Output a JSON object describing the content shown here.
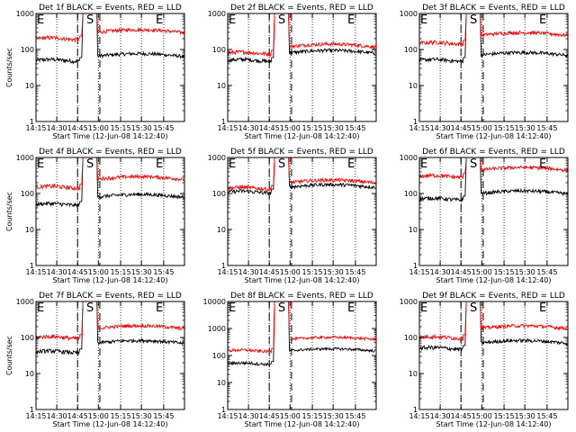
{
  "chart_data": [
    {
      "type": "line",
      "title": "Det 1f BLACK = Events, RED = LLD",
      "xlabel": "Start Time (12-Jun-08 14:12:40)",
      "ylabel": "Counts/sec",
      "ylim": [
        1,
        1000
      ],
      "y_scale": "log",
      "xlim": [
        0,
        100
      ],
      "x_ticks": [
        "14:15",
        "14:30",
        "14:45",
        "15:00",
        "15:15",
        "15:30",
        "15:45"
      ],
      "y_ticks": [
        "1",
        "10",
        "100",
        "1000"
      ],
      "markers": {
        "E": "E",
        "S": "S"
      },
      "series": [
        {
          "name": "Events",
          "color": "#000000",
          "pre": 50,
          "post": 65
        },
        {
          "name": "LLD",
          "color": "#ff0000",
          "pre": 200,
          "post": 300
        }
      ]
    },
    {
      "type": "line",
      "title": "Det 2f BLACK = Events, RED = LLD",
      "xlabel": "Start Time (12-Jun-08 14:12:40)",
      "ylabel": "",
      "ylim": [
        1,
        1000
      ],
      "y_scale": "log",
      "xlim": [
        0,
        100
      ],
      "x_ticks": [
        "14:15",
        "14:30",
        "14:45",
        "15:00",
        "15:15",
        "15:30",
        "15:45"
      ],
      "y_ticks": [
        "1",
        "10",
        "100",
        "1000"
      ],
      "markers": {
        "E": "E",
        "S": "S"
      },
      "series": [
        {
          "name": "Events",
          "color": "#000000",
          "pre": 50,
          "post": 80
        },
        {
          "name": "LLD",
          "color": "#ff0000",
          "pre": 80,
          "post": 120
        }
      ]
    },
    {
      "type": "line",
      "title": "Det 3f BLACK = Events, RED = LLD",
      "xlabel": "Start Time (12-Jun-08 14:12:40)",
      "ylabel": "",
      "ylim": [
        1,
        1000
      ],
      "y_scale": "log",
      "xlim": [
        0,
        100
      ],
      "x_ticks": [
        "14:15",
        "14:30",
        "14:45",
        "15:00",
        "15:15",
        "15:30",
        "15:45"
      ],
      "y_ticks": [
        "1",
        "10",
        "100",
        "1000"
      ],
      "markers": {
        "E": "E",
        "S": "S"
      },
      "series": [
        {
          "name": "Events",
          "color": "#000000",
          "pre": 50,
          "post": 70
        },
        {
          "name": "LLD",
          "color": "#ff0000",
          "pre": 150,
          "post": 250
        }
      ]
    },
    {
      "type": "line",
      "title": "Det 4f BLACK = Events, RED = LLD",
      "xlabel": "Start Time (12-Jun-08 14:12:40)",
      "ylabel": "Counts/sec",
      "ylim": [
        1,
        1000
      ],
      "y_scale": "log",
      "xlim": [
        0,
        100
      ],
      "x_ticks": [
        "14:15",
        "14:30",
        "14:45",
        "15:00",
        "15:15",
        "15:30",
        "15:45"
      ],
      "y_ticks": [
        "1",
        "10",
        "100",
        "1000"
      ],
      "markers": {
        "E": "E",
        "S": "S"
      },
      "series": [
        {
          "name": "Events",
          "color": "#000000",
          "pre": 50,
          "post": 80
        },
        {
          "name": "LLD",
          "color": "#ff0000",
          "pre": 150,
          "post": 250
        }
      ]
    },
    {
      "type": "line",
      "title": "Det 5f BLACK = Events, RED = LLD",
      "xlabel": "Start Time (12-Jun-08 14:12:40)",
      "ylabel": "",
      "ylim": [
        1,
        1000
      ],
      "y_scale": "log",
      "xlim": [
        0,
        100
      ],
      "x_ticks": [
        "14:15",
        "14:30",
        "14:45",
        "15:00",
        "15:15",
        "15:30",
        "15:45"
      ],
      "y_ticks": [
        "1",
        "10",
        "100",
        "1000"
      ],
      "markers": {
        "E": "E",
        "S": "S"
      },
      "series": [
        {
          "name": "Events",
          "color": "#000000",
          "pre": 110,
          "post": 150
        },
        {
          "name": "LLD",
          "color": "#ff0000",
          "pre": 140,
          "post": 200
        }
      ]
    },
    {
      "type": "line",
      "title": "Det 6f BLACK = Events, RED = LLD",
      "xlabel": "Start Time (12-Jun-08 14:12:40)",
      "ylabel": "",
      "ylim": [
        1,
        1000
      ],
      "y_scale": "log",
      "xlim": [
        0,
        100
      ],
      "x_ticks": [
        "14:15",
        "14:30",
        "14:45",
        "15:00",
        "15:15",
        "15:30",
        "15:45"
      ],
      "y_ticks": [
        "1",
        "10",
        "100",
        "1000"
      ],
      "markers": {
        "E": "E",
        "S": "S"
      },
      "series": [
        {
          "name": "Events",
          "color": "#000000",
          "pre": 70,
          "post": 100
        },
        {
          "name": "LLD",
          "color": "#ff0000",
          "pre": 300,
          "post": 450
        }
      ]
    },
    {
      "type": "line",
      "title": "Det 7f BLACK = Events, RED = LLD",
      "xlabel": "Start Time (12-Jun-08 14:12:40)",
      "ylabel": "Counts/sec",
      "ylim": [
        1,
        1000
      ],
      "y_scale": "log",
      "xlim": [
        0,
        100
      ],
      "x_ticks": [
        "14:15",
        "14:30",
        "14:45",
        "15:00",
        "15:15",
        "15:30",
        "15:45"
      ],
      "y_ticks": [
        "1",
        "10",
        "100",
        "1000"
      ],
      "markers": {
        "E": "E",
        "S": "S"
      },
      "series": [
        {
          "name": "Events",
          "color": "#000000",
          "pre": 40,
          "post": 70
        },
        {
          "name": "LLD",
          "color": "#ff0000",
          "pre": 100,
          "post": 180
        }
      ]
    },
    {
      "type": "line",
      "title": "Det 8f BLACK = Events, RED = LLD",
      "xlabel": "Start Time (12-Jun-08 14:12:40)",
      "ylabel": "",
      "ylim": [
        1,
        10000
      ],
      "y_scale": "log",
      "xlim": [
        0,
        100
      ],
      "x_ticks": [
        "14:15",
        "14:30",
        "14:45",
        "15:00",
        "15:15",
        "15:30",
        "15:45"
      ],
      "y_ticks": [
        "1",
        "10",
        "100",
        "1000",
        "10000"
      ],
      "markers": {
        "E": "E",
        "S": "S"
      },
      "series": [
        {
          "name": "Events",
          "color": "#000000",
          "pre": 50,
          "post": 150
        },
        {
          "name": "LLD",
          "color": "#ff0000",
          "pre": 150,
          "post": 400
        }
      ]
    },
    {
      "type": "line",
      "title": "Det 9f BLACK = Events, RED = LLD",
      "xlabel": "Start Time (12-Jun-08 14:12:40)",
      "ylabel": "",
      "ylim": [
        1,
        1000
      ],
      "y_scale": "log",
      "xlim": [
        0,
        100
      ],
      "x_ticks": [
        "14:15",
        "14:30",
        "14:45",
        "15:00",
        "15:15",
        "15:30",
        "15:45"
      ],
      "y_ticks": [
        "1",
        "10",
        "100",
        "1000"
      ],
      "markers": {
        "E": "E",
        "S": "S"
      },
      "series": [
        {
          "name": "Events",
          "color": "#000000",
          "pre": 50,
          "post": 70
        },
        {
          "name": "LLD",
          "color": "#ff0000",
          "pre": 100,
          "post": 180
        }
      ]
    }
  ]
}
